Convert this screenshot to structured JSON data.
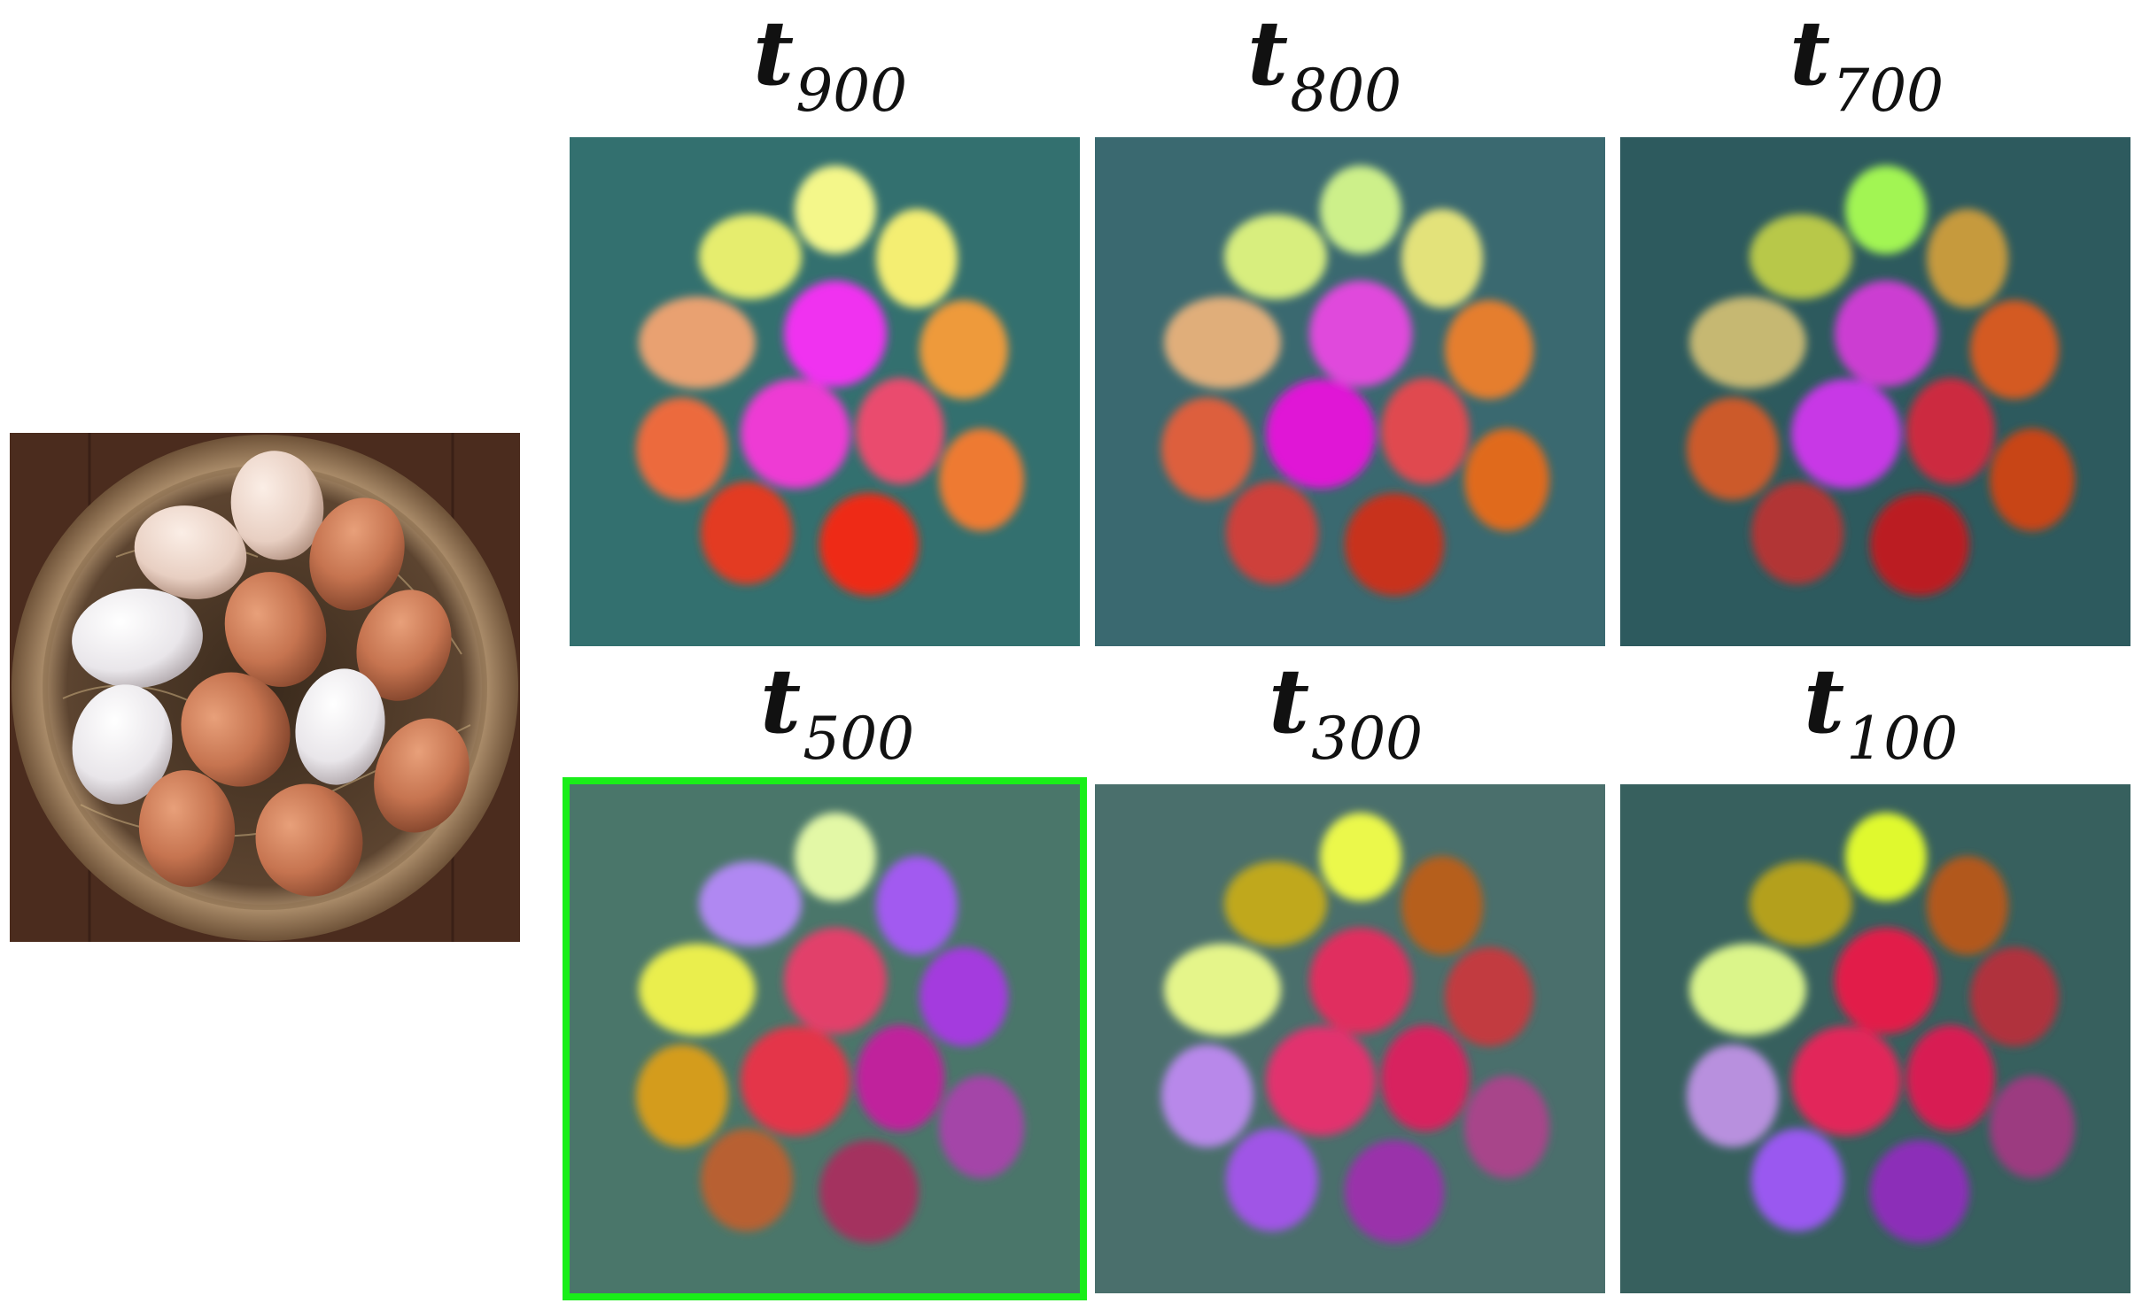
{
  "source_image": {
    "icon": "eggs-in-basket-photo"
  },
  "panels": [
    {
      "symbol": "t",
      "subscript": "900",
      "selected": false,
      "bg": "#33706f",
      "blobs": [
        "#f4f78a",
        "#e6ed6e",
        "#f4ee72",
        "#e9a171",
        "#f033f0",
        "#ee9a3a",
        "#ec6a3e",
        "#ee3ad4",
        "#ea4c6e",
        "#ee7a33",
        "#e33a22",
        "#ee2a14"
      ]
    },
    {
      "symbol": "t",
      "subscript": "800",
      "selected": false,
      "bg": "#3a6970",
      "blobs": [
        "#cdf08a",
        "#d8ee7e",
        "#e3e27a",
        "#e0ae7a",
        "#e048dc",
        "#e57e2e",
        "#dd5e3c",
        "#e018d6",
        "#e04850",
        "#e06a1e",
        "#ce403a",
        "#c8301e"
      ]
    },
    {
      "symbol": "t",
      "subscript": "700",
      "selected": false,
      "bg": "#2d5a5e",
      "blobs": [
        "#a2f552",
        "#b8c84a",
        "#c69a3e",
        "#c6b872",
        "#cc3cd2",
        "#d45a22",
        "#cc5a2a",
        "#c838e6",
        "#cc2a40",
        "#c84416",
        "#b23636",
        "#bb1e22"
      ]
    },
    {
      "symbol": "t",
      "subscript": "500",
      "selected": true,
      "bg": "#4a766a",
      "blobs": [
        "#e3f8a6",
        "#b088f2",
        "#a25af0",
        "#eaee4e",
        "#e2406a",
        "#a43ade",
        "#d49c1a",
        "#e4364a",
        "#c0249c",
        "#a444a8",
        "#b86032",
        "#a4305e"
      ]
    },
    {
      "symbol": "t",
      "subscript": "300",
      "selected": false,
      "bg": "#4a6f6c",
      "blobs": [
        "#ebf84c",
        "#c0a81e",
        "#b65e1a",
        "#e5f58a",
        "#e02e5e",
        "#c23a40",
        "#b888ea",
        "#e2306e",
        "#d8245e",
        "#a8448a",
        "#a054e6",
        "#9a30aa"
      ]
    },
    {
      "symbol": "t",
      "subscript": "100",
      "selected": false,
      "bg": "#37605e",
      "blobs": [
        "#e0f92e",
        "#b4a01a",
        "#b2581a",
        "#dbf58a",
        "#e21a4a",
        "#b0303e",
        "#b890de",
        "#e2285a",
        "#d81e52",
        "#9c3a80",
        "#9a58f0",
        "#8c2eb8"
      ]
    }
  ]
}
